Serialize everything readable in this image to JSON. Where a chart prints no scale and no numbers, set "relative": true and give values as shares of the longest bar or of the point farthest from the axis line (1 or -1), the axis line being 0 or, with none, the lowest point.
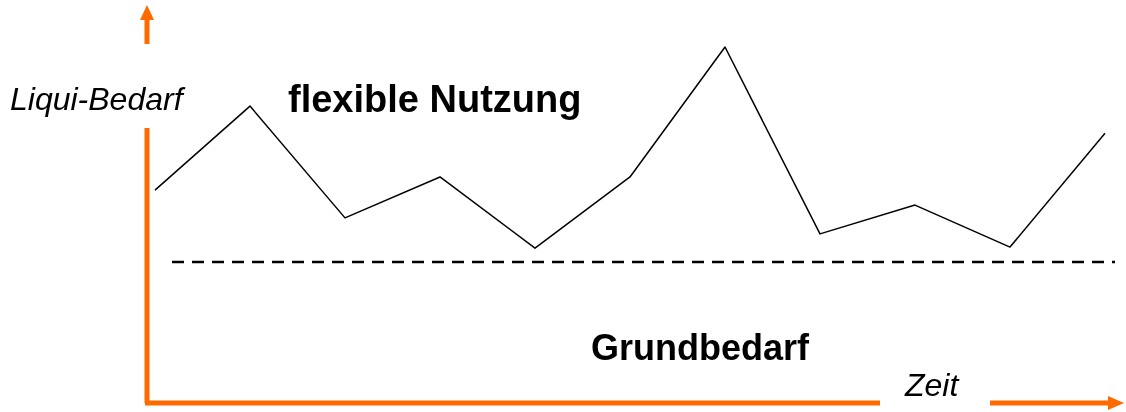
{
  "chart_data": {
    "type": "line",
    "relative": true,
    "xlabel": "Zeit",
    "ylabel": "Liqui-Bedarf",
    "categories": [
      null,
      null,
      null,
      null,
      null,
      null,
      null,
      null,
      null,
      null,
      null
    ],
    "series": [
      {
        "color": "#000000",
        "values": [
          0.598,
          0.834,
          0.52,
          0.635,
          0.435,
          0.635,
          1,
          0.475,
          0.556,
          0.438,
          0.758
        ]
      }
    ],
    "ref_lines": [
      {
        "axis": "y",
        "value": 0.396,
        "label": "Grundbedarf",
        "color": "#000000",
        "line_style": "dashed"
      }
    ],
    "annotations": [
      "flexible Nutzung"
    ],
    "marker": "none",
    "line_style": "solid"
  }
}
